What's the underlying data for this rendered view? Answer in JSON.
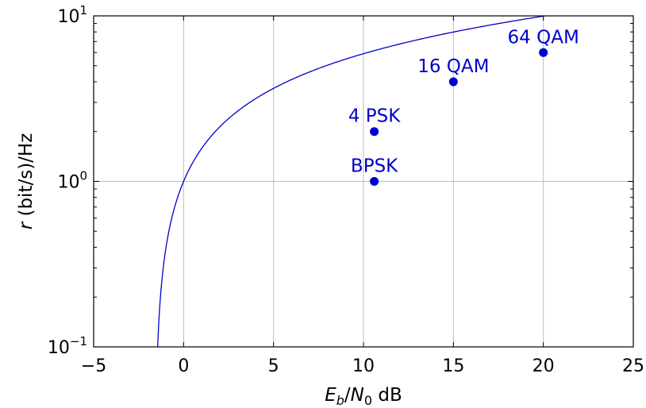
{
  "chart_data": {
    "type": "line",
    "xscale": "linear",
    "yscale": "log",
    "xlim": [
      -5,
      25
    ],
    "ylim": [
      0.1,
      10
    ],
    "grid": true,
    "xlabel": {
      "var": "E",
      "var_sub": "b",
      "sep": "/",
      "var2": "N",
      "var2_sub": "0",
      "unit": " dB"
    },
    "ylabel": {
      "var": "r",
      "unit": " (bit/s)/Hz"
    },
    "x_ticks": [
      {
        "value": -5,
        "label": "−5"
      },
      {
        "value": 0,
        "label": "0"
      },
      {
        "value": 5,
        "label": "5"
      },
      {
        "value": 10,
        "label": "10"
      },
      {
        "value": 15,
        "label": "15"
      },
      {
        "value": 20,
        "label": "20"
      },
      {
        "value": 25,
        "label": "25"
      }
    ],
    "y_ticks": [
      {
        "value": 0.1,
        "base": "10",
        "exp": "−1"
      },
      {
        "value": 1,
        "base": "10",
        "exp": "0"
      },
      {
        "value": 10,
        "base": "10",
        "exp": "1"
      }
    ],
    "curve": {
      "formula": "Eb/N0 = (2^r - 1) / r",
      "color": "#0000cc"
    },
    "points": [
      {
        "label": "BPSK",
        "x": 10.6,
        "y": 1
      },
      {
        "label": "4 PSK",
        "x": 10.6,
        "y": 2
      },
      {
        "label": "16 QAM",
        "x": 15,
        "y": 4
      },
      {
        "label": "64 QAM",
        "x": 20,
        "y": 6
      }
    ],
    "point_color": "#0000cc"
  }
}
